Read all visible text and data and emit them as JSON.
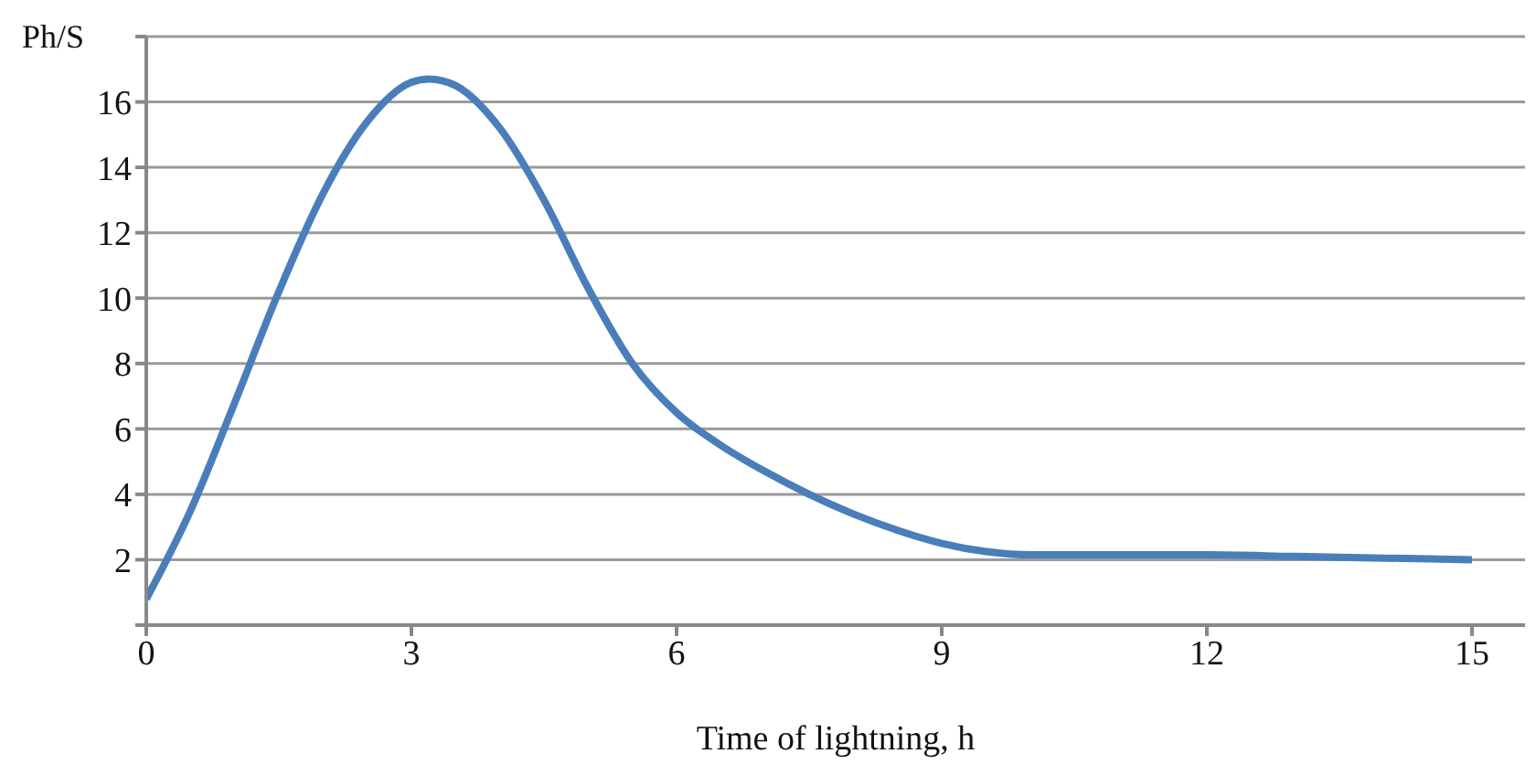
{
  "chart_data": {
    "type": "line",
    "xlabel": "Time of lightning, h",
    "ylabel": "Ph/S",
    "x": [
      0,
      0.5,
      1,
      1.5,
      2,
      2.5,
      3,
      3.2,
      3.5,
      4,
      4.5,
      5,
      5.5,
      6,
      6.5,
      7,
      7.5,
      8,
      8.5,
      9,
      9.5,
      10,
      11,
      12,
      13,
      14,
      15
    ],
    "series": [
      {
        "color": "#4a7ebb",
        "values": [
          0.8,
          3.5,
          6.8,
          10.2,
          13.2,
          15.4,
          16.6,
          16.7,
          16.5,
          15.2,
          13,
          10.3,
          8,
          6.5,
          5.5,
          4.7,
          4,
          3.4,
          2.9,
          2.5,
          2.25,
          2.15,
          2.15,
          2.15,
          2.1,
          2.05,
          2
        ]
      }
    ],
    "xlim": [
      0,
      15.6
    ],
    "xticks": [
      0,
      3,
      6,
      9,
      12,
      15
    ],
    "ylim": [
      0,
      18
    ],
    "yticks": [
      {
        "value": 0,
        "label": null
      },
      2,
      4,
      6,
      8,
      10,
      12,
      14,
      16,
      {
        "value": 18,
        "label": null
      }
    ],
    "grid": "y",
    "legend": false,
    "marker": "none",
    "line_style": "solid"
  }
}
